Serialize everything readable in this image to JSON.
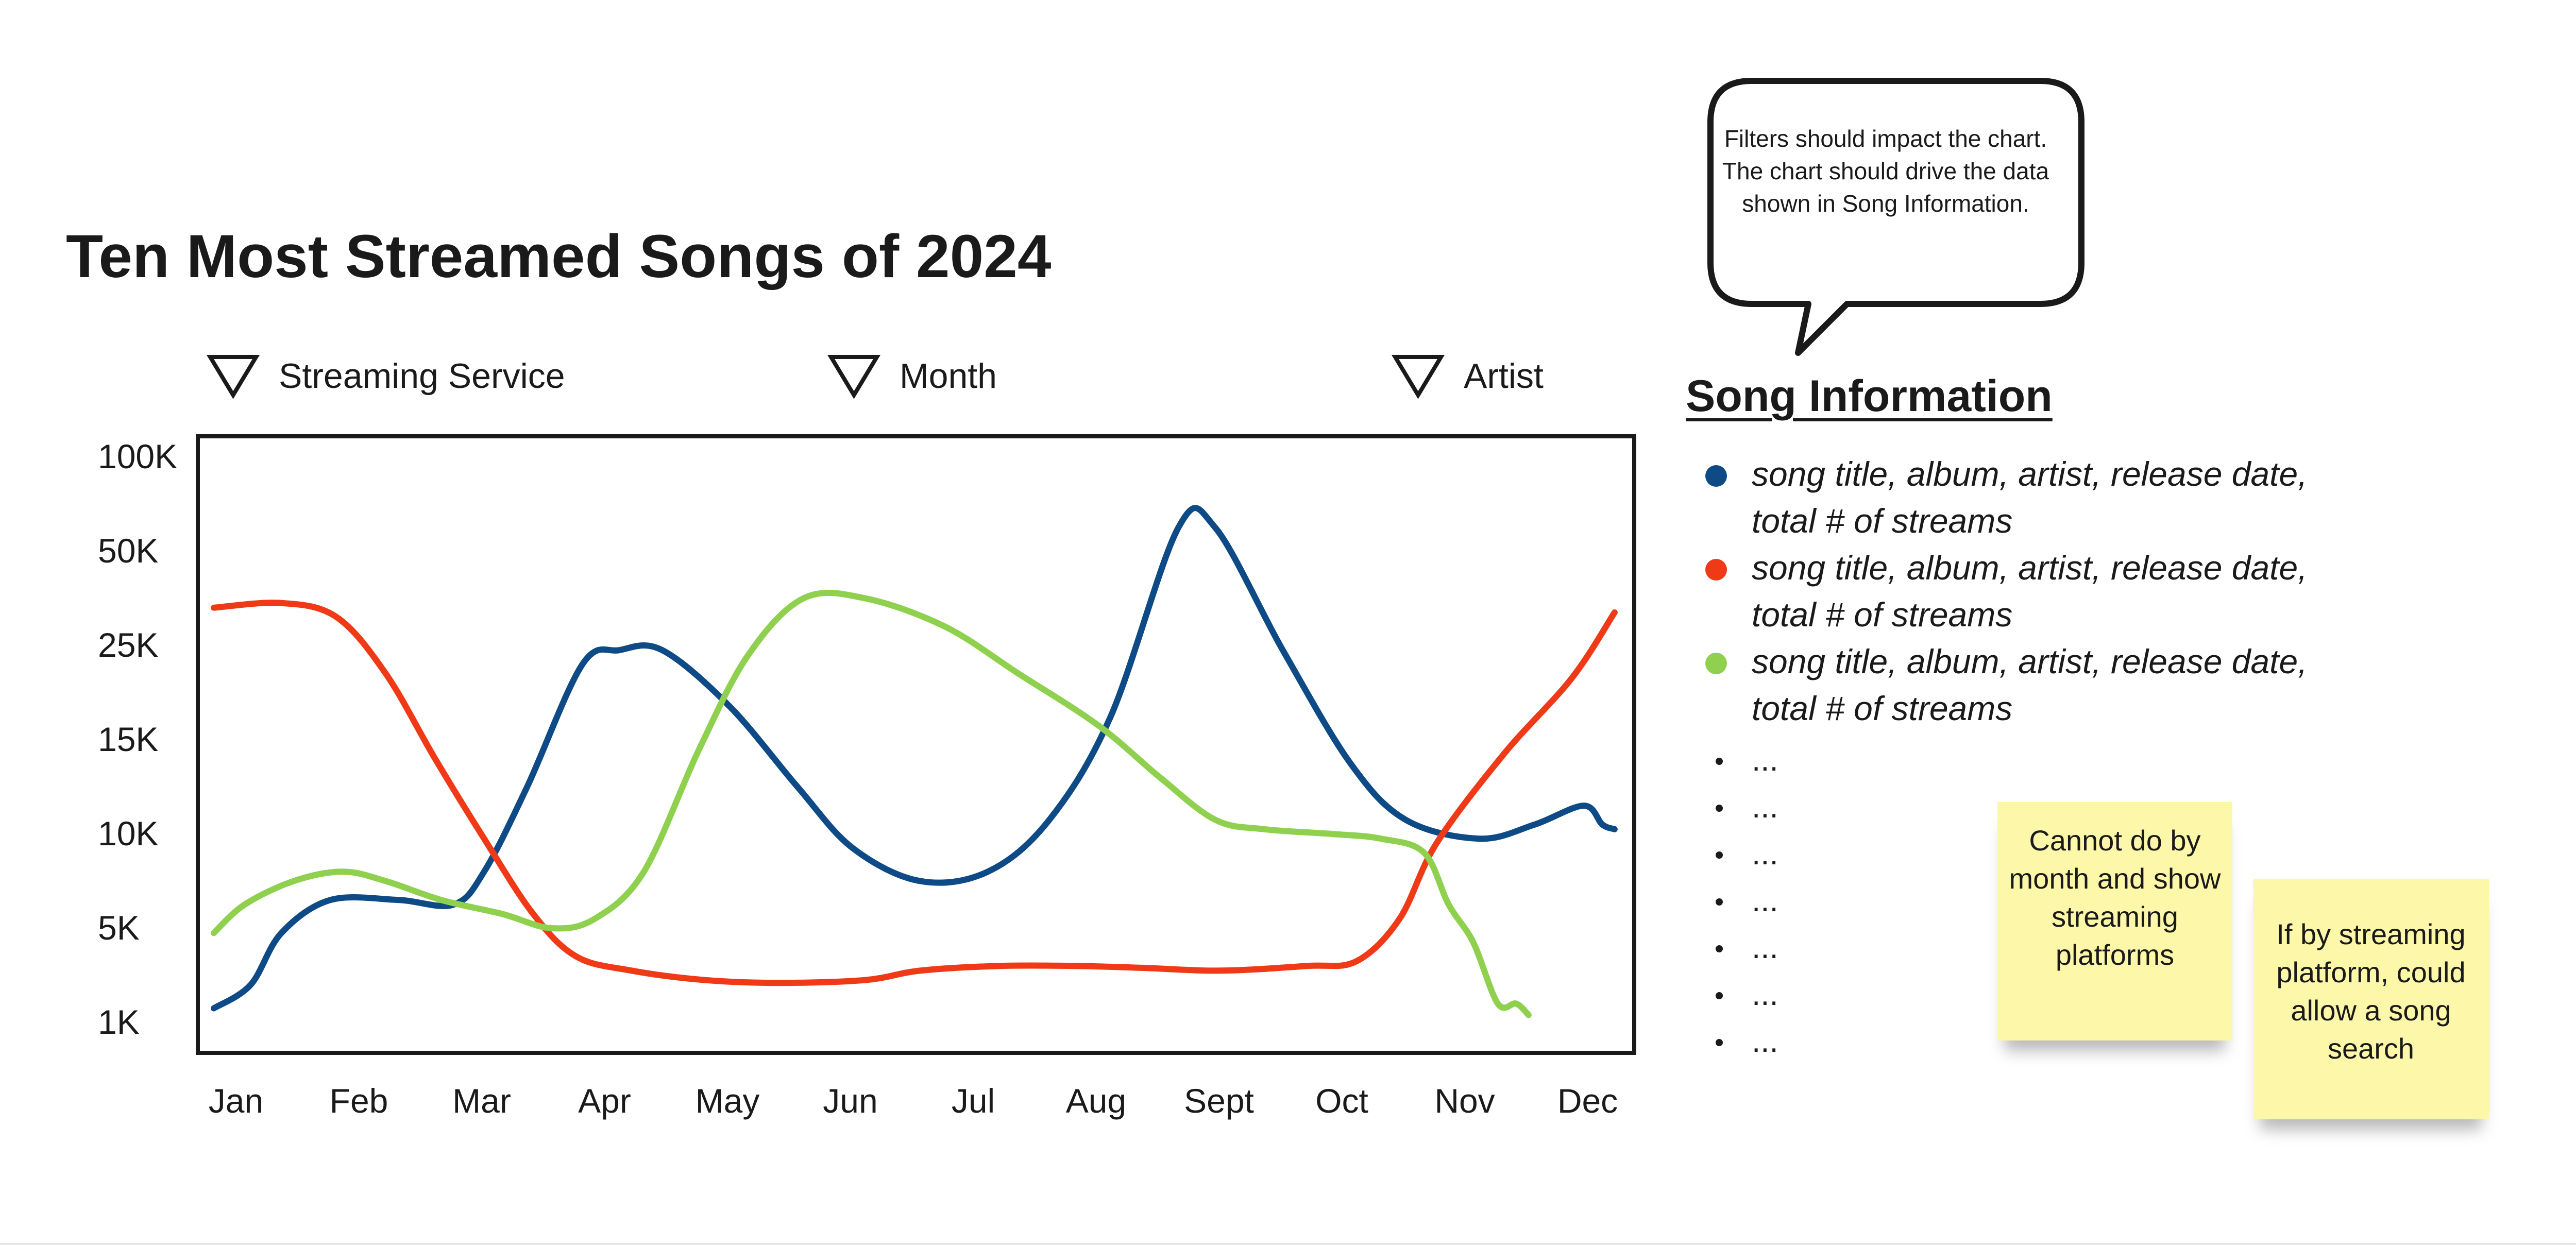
{
  "page": {
    "title": "Ten Most Streamed Songs of 2024"
  },
  "filters": [
    {
      "label": "Streaming Service",
      "icon": "triangle-down-icon"
    },
    {
      "label": "Month",
      "icon": "triangle-down-icon"
    },
    {
      "label": "Artist",
      "icon": "triangle-down-icon"
    }
  ],
  "callout": {
    "text": "Filters should impact the chart. The chart should drive the data shown in Song Information."
  },
  "song_info": {
    "title": "Song Information",
    "items": [
      {
        "text": "song title, album, artist, release date, total # of streams",
        "color": "#0e4a85"
      },
      {
        "text": "song title, album, artist, release date, total # of streams",
        "color": "#f03a17"
      },
      {
        "text": "song title, album, artist, release date, total # of streams",
        "color": "#8fd14f"
      }
    ],
    "ellipses": [
      "...",
      "...",
      "...",
      "...",
      "...",
      "...",
      "..."
    ]
  },
  "sticky_notes": [
    {
      "text": "Cannot do by month and show streaming platforms"
    },
    {
      "text": "If by streaming platform, could allow a song search"
    }
  ],
  "chart_data": {
    "type": "line",
    "categories": [
      "Jan",
      "Feb",
      "Mar",
      "Apr",
      "May",
      "Jun",
      "Jul",
      "Aug",
      "Sept",
      "Oct",
      "Nov",
      "Dec"
    ],
    "y_tick_labels": [
      "1K",
      "5K",
      "10K",
      "15K",
      "25K",
      "50K",
      "100K"
    ],
    "y_scale": "categorical ticks, evenly spaced",
    "grid": false,
    "series": [
      {
        "color": "#0e4a85",
        "points": [
          [
            0.0,
            0.15
          ],
          [
            0.3,
            0.4
          ],
          [
            0.55,
            0.95
          ],
          [
            0.95,
            1.3
          ],
          [
            1.5,
            1.3
          ],
          [
            1.95,
            1.25
          ],
          [
            2.2,
            1.6
          ],
          [
            2.55,
            2.5
          ],
          [
            3.0,
            3.8
          ],
          [
            3.3,
            3.95
          ],
          [
            3.65,
            3.95
          ],
          [
            4.2,
            3.35
          ],
          [
            4.75,
            2.5
          ],
          [
            5.2,
            1.85
          ],
          [
            5.75,
            1.5
          ],
          [
            6.3,
            1.6
          ],
          [
            6.8,
            2.15
          ],
          [
            7.3,
            3.25
          ],
          [
            7.85,
            5.25
          ],
          [
            8.15,
            5.25
          ],
          [
            8.7,
            3.95
          ],
          [
            9.25,
            2.75
          ],
          [
            9.7,
            2.15
          ],
          [
            10.3,
            1.95
          ],
          [
            10.75,
            2.1
          ],
          [
            11.15,
            2.3
          ],
          [
            11.3,
            2.1
          ],
          [
            11.4,
            2.05
          ]
        ]
      },
      {
        "color": "#f03a17",
        "points": [
          [
            0.0,
            4.4
          ],
          [
            0.55,
            4.45
          ],
          [
            1.0,
            4.3
          ],
          [
            1.4,
            3.7
          ],
          [
            1.8,
            2.8
          ],
          [
            2.2,
            1.95
          ],
          [
            2.6,
            1.15
          ],
          [
            2.95,
            0.7
          ],
          [
            3.4,
            0.55
          ],
          [
            4.0,
            0.45
          ],
          [
            4.6,
            0.42
          ],
          [
            5.3,
            0.45
          ],
          [
            5.75,
            0.55
          ],
          [
            6.4,
            0.6
          ],
          [
            7.0,
            0.6
          ],
          [
            7.55,
            0.58
          ],
          [
            8.2,
            0.55
          ],
          [
            8.9,
            0.6
          ],
          [
            9.3,
            0.65
          ],
          [
            9.65,
            1.1
          ],
          [
            9.95,
            1.9
          ],
          [
            10.5,
            2.85
          ],
          [
            11.05,
            3.65
          ],
          [
            11.4,
            4.35
          ]
        ]
      },
      {
        "color": "#8fd14f",
        "points": [
          [
            0.0,
            0.95
          ],
          [
            0.25,
            1.25
          ],
          [
            0.65,
            1.5
          ],
          [
            1.05,
            1.6
          ],
          [
            1.4,
            1.5
          ],
          [
            1.85,
            1.3
          ],
          [
            2.35,
            1.15
          ],
          [
            2.75,
            1.0
          ],
          [
            3.1,
            1.1
          ],
          [
            3.5,
            1.6
          ],
          [
            3.95,
            2.9
          ],
          [
            4.35,
            3.9
          ],
          [
            4.8,
            4.5
          ],
          [
            5.3,
            4.5
          ],
          [
            5.95,
            4.2
          ],
          [
            6.55,
            3.7
          ],
          [
            7.2,
            3.15
          ],
          [
            7.7,
            2.6
          ],
          [
            8.15,
            2.15
          ],
          [
            8.55,
            2.05
          ],
          [
            9.1,
            2.0
          ],
          [
            9.5,
            1.95
          ],
          [
            9.85,
            1.8
          ],
          [
            10.05,
            1.25
          ],
          [
            10.25,
            0.85
          ],
          [
            10.45,
            0.2
          ],
          [
            10.6,
            0.2
          ],
          [
            10.7,
            0.08
          ]
        ]
      }
    ]
  }
}
